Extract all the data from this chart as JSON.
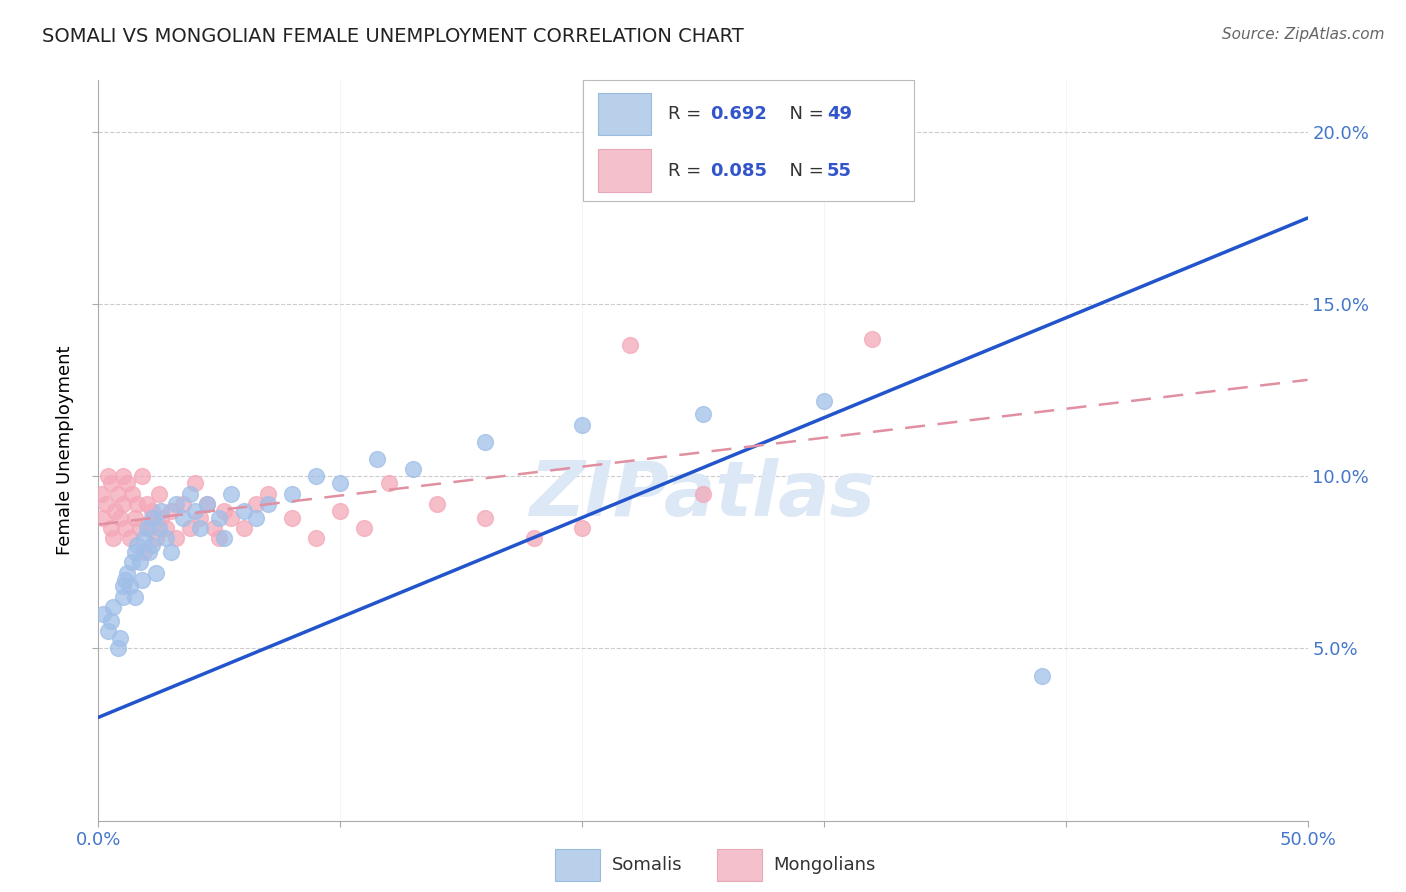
{
  "title": "SOMALI VS MONGOLIAN FEMALE UNEMPLOYMENT CORRELATION CHART",
  "source": "Source: ZipAtlas.com",
  "ylabel": "Female Unemployment",
  "xlim": [
    0.0,
    0.5
  ],
  "ylim": [
    0.0,
    0.215
  ],
  "xticks": [
    0.0,
    0.1,
    0.2,
    0.3,
    0.4,
    0.5
  ],
  "xticklabels": [
    "0.0%",
    "",
    "",
    "",
    "",
    "50.0%"
  ],
  "yticks": [
    0.05,
    0.1,
    0.15,
    0.2
  ],
  "yticklabels": [
    "5.0%",
    "10.0%",
    "15.0%",
    "20.0%"
  ],
  "somali_color": "#a0bfe8",
  "mongolian_color": "#f4a8b8",
  "tick_color": "#4477cc",
  "grid_color": "#cccccc",
  "background_color": "#ffffff",
  "watermark_color": "#dce8f5",
  "somali_line_color": "#2255cc",
  "mongolian_line_color": "#e090a0",
  "somali_x": [
    0.002,
    0.004,
    0.005,
    0.006,
    0.008,
    0.009,
    0.01,
    0.01,
    0.011,
    0.012,
    0.013,
    0.014,
    0.015,
    0.015,
    0.016,
    0.017,
    0.018,
    0.019,
    0.02,
    0.021,
    0.022,
    0.022,
    0.024,
    0.025,
    0.026,
    0.028,
    0.03,
    0.032,
    0.035,
    0.038,
    0.04,
    0.042,
    0.045,
    0.05,
    0.052,
    0.055,
    0.06,
    0.065,
    0.07,
    0.08,
    0.09,
    0.1,
    0.115,
    0.13,
    0.16,
    0.2,
    0.25,
    0.3,
    0.39
  ],
  "somali_y": [
    0.06,
    0.055,
    0.058,
    0.062,
    0.05,
    0.053,
    0.065,
    0.068,
    0.07,
    0.072,
    0.068,
    0.075,
    0.078,
    0.065,
    0.08,
    0.075,
    0.07,
    0.082,
    0.085,
    0.078,
    0.08,
    0.088,
    0.072,
    0.085,
    0.09,
    0.082,
    0.078,
    0.092,
    0.088,
    0.095,
    0.09,
    0.085,
    0.092,
    0.088,
    0.082,
    0.095,
    0.09,
    0.088,
    0.092,
    0.095,
    0.1,
    0.098,
    0.105,
    0.102,
    0.11,
    0.115,
    0.118,
    0.122,
    0.042
  ],
  "mongolian_x": [
    0.001,
    0.002,
    0.003,
    0.004,
    0.005,
    0.005,
    0.006,
    0.007,
    0.008,
    0.009,
    0.01,
    0.01,
    0.011,
    0.012,
    0.013,
    0.014,
    0.015,
    0.016,
    0.017,
    0.018,
    0.019,
    0.02,
    0.021,
    0.022,
    0.023,
    0.024,
    0.025,
    0.026,
    0.028,
    0.03,
    0.032,
    0.035,
    0.038,
    0.04,
    0.042,
    0.045,
    0.048,
    0.05,
    0.052,
    0.055,
    0.06,
    0.065,
    0.07,
    0.08,
    0.09,
    0.1,
    0.11,
    0.12,
    0.14,
    0.16,
    0.18,
    0.2,
    0.22,
    0.25,
    0.32
  ],
  "mongolian_y": [
    0.095,
    0.088,
    0.092,
    0.1,
    0.085,
    0.098,
    0.082,
    0.09,
    0.095,
    0.088,
    0.1,
    0.092,
    0.085,
    0.098,
    0.082,
    0.095,
    0.088,
    0.092,
    0.085,
    0.1,
    0.078,
    0.092,
    0.085,
    0.09,
    0.088,
    0.082,
    0.095,
    0.088,
    0.085,
    0.09,
    0.082,
    0.092,
    0.085,
    0.098,
    0.088,
    0.092,
    0.085,
    0.082,
    0.09,
    0.088,
    0.085,
    0.092,
    0.095,
    0.088,
    0.082,
    0.09,
    0.085,
    0.098,
    0.092,
    0.088,
    0.082,
    0.085,
    0.138,
    0.095,
    0.14
  ],
  "somali_line_x": [
    0.0,
    0.5
  ],
  "somali_line_y": [
    0.03,
    0.175
  ],
  "mongolian_line_x": [
    0.0,
    0.5
  ],
  "mongolian_line_y": [
    0.086,
    0.128
  ]
}
